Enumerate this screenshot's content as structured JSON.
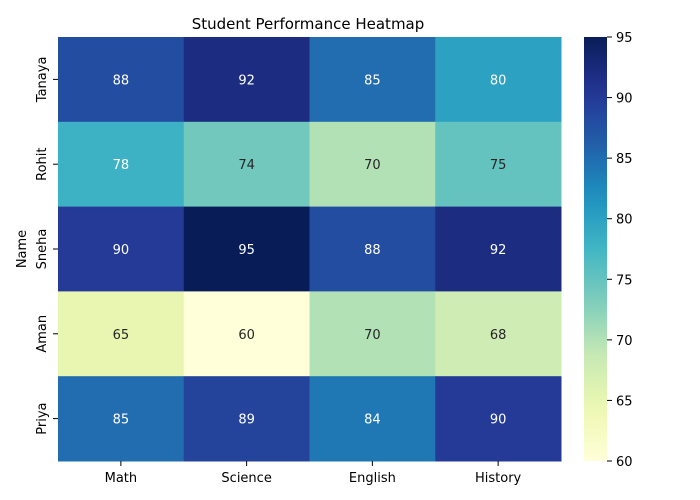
{
  "chart_data": {
    "type": "heatmap",
    "title": "Student Performance Heatmap",
    "xlabel": "",
    "ylabel": "Name",
    "columns": [
      "Math",
      "Science",
      "English",
      "History"
    ],
    "rows": [
      "Tanaya",
      "Rohit",
      "Sneha",
      "Aman",
      "Priya"
    ],
    "values": [
      [
        88,
        92,
        85,
        80
      ],
      [
        78,
        74,
        70,
        75
      ],
      [
        90,
        95,
        88,
        92
      ],
      [
        65,
        60,
        70,
        68
      ],
      [
        85,
        89,
        84,
        90
      ]
    ],
    "colorbar": {
      "min": 60,
      "max": 95,
      "ticks": [
        60,
        65,
        70,
        75,
        80,
        85,
        90,
        95
      ],
      "colormap": "YlGnBu"
    },
    "annotated": true,
    "grid": false
  }
}
